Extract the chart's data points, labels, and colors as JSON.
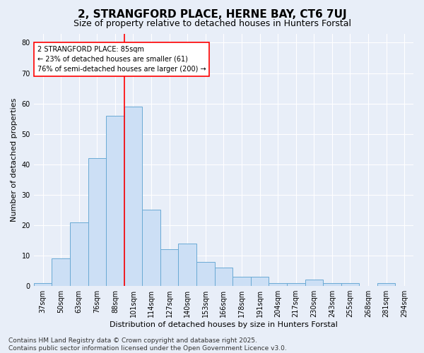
{
  "title": "2, STRANGFORD PLACE, HERNE BAY, CT6 7UJ",
  "subtitle": "Size of property relative to detached houses in Hunters Forstal",
  "xlabel": "Distribution of detached houses by size in Hunters Forstal",
  "ylabel": "Number of detached properties",
  "bar_color": "#ccdff5",
  "bar_edge_color": "#6aaad4",
  "bg_color": "#e8eef8",
  "grid_color": "#ffffff",
  "categories": [
    "37sqm",
    "50sqm",
    "63sqm",
    "76sqm",
    "88sqm",
    "101sqm",
    "114sqm",
    "127sqm",
    "140sqm",
    "153sqm",
    "166sqm",
    "178sqm",
    "191sqm",
    "204sqm",
    "217sqm",
    "230sqm",
    "243sqm",
    "255sqm",
    "268sqm",
    "281sqm",
    "294sqm"
  ],
  "values": [
    1,
    9,
    21,
    42,
    56,
    59,
    25,
    12,
    14,
    8,
    6,
    3,
    3,
    1,
    1,
    2,
    1,
    1,
    0,
    1,
    0
  ],
  "red_line_index": 4,
  "annotation_text": "2 STRANGFORD PLACE: 85sqm\n← 23% of detached houses are smaller (61)\n76% of semi-detached houses are larger (200) →",
  "ylim": [
    0,
    83
  ],
  "yticks": [
    0,
    10,
    20,
    30,
    40,
    50,
    60,
    70,
    80
  ],
  "footer_text": "Contains HM Land Registry data © Crown copyright and database right 2025.\nContains public sector information licensed under the Open Government Licence v3.0.",
  "title_fontsize": 11,
  "subtitle_fontsize": 9,
  "label_fontsize": 8,
  "tick_fontsize": 7,
  "annot_fontsize": 7,
  "footer_fontsize": 6.5
}
